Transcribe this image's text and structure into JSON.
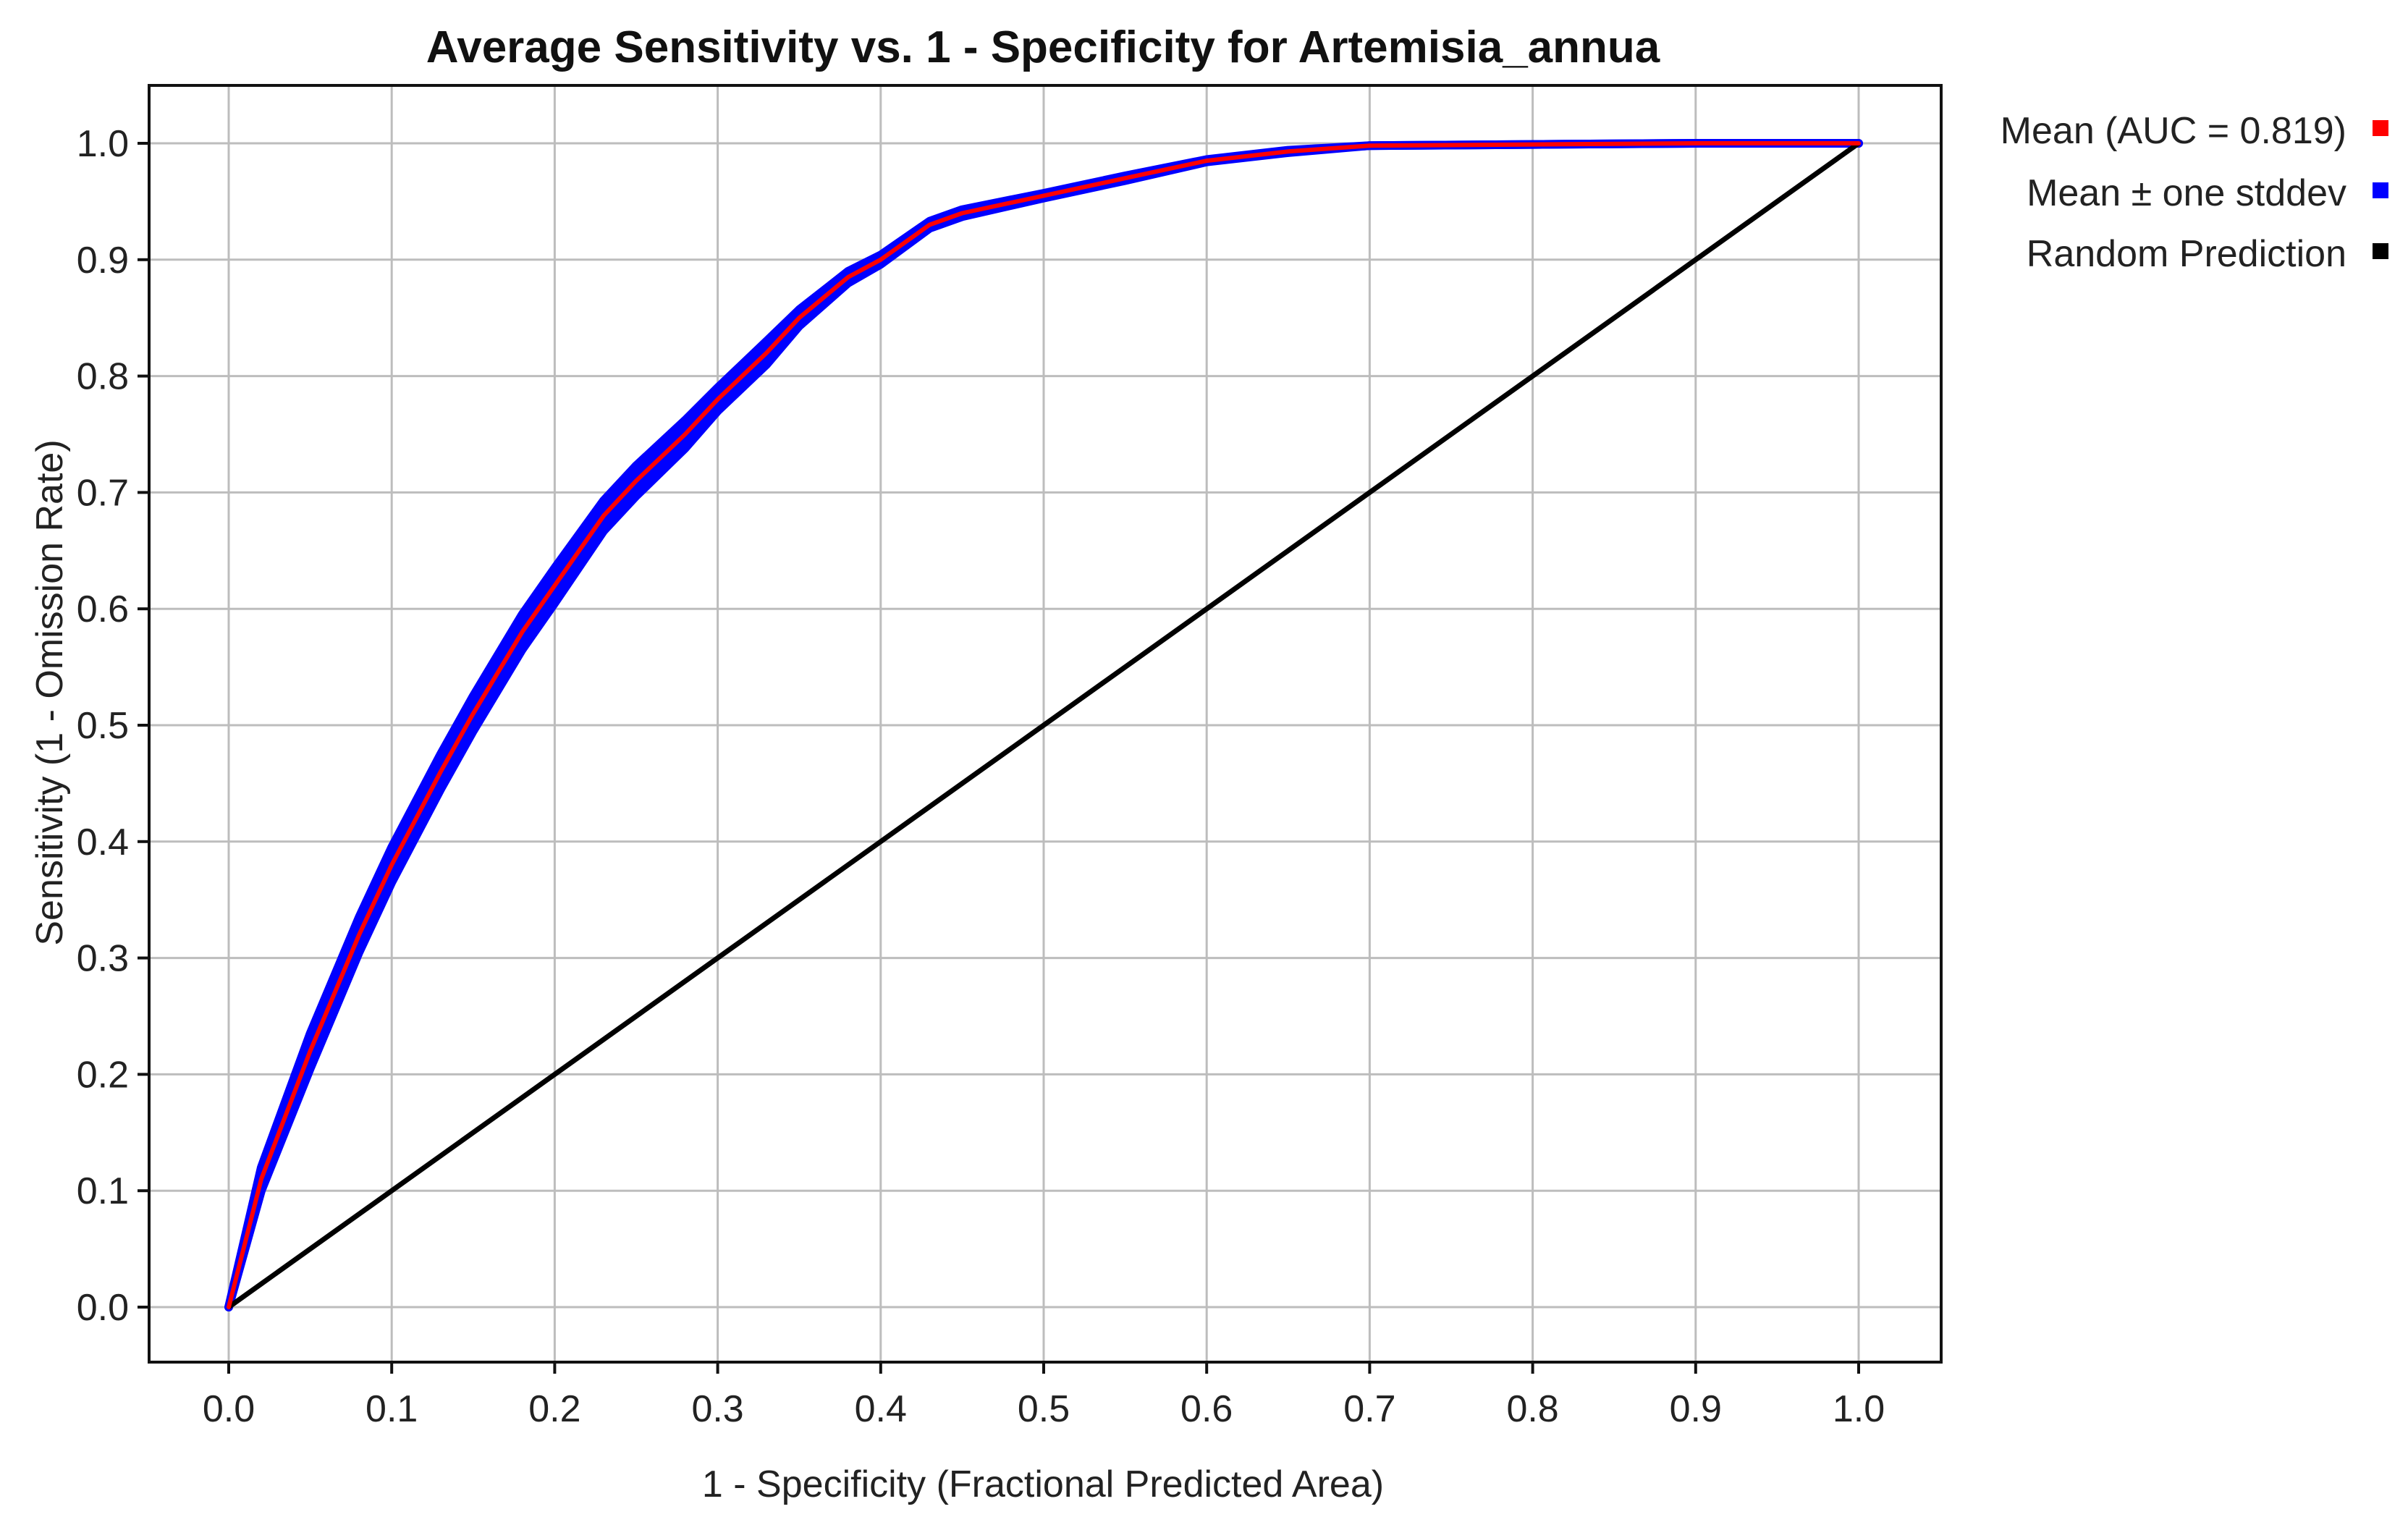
{
  "chart_data": {
    "type": "line",
    "title": "Average Sensitivity vs. 1 - Specificity for Artemisia_annua",
    "xlabel": "1 - Specificity (Fractional Predicted Area)",
    "ylabel": "Sensitivity (1 - Omission Rate)",
    "xlim": [
      0.0,
      1.0
    ],
    "ylim": [
      0.0,
      1.0
    ],
    "x_ticks": [
      "0.0",
      "0.1",
      "0.2",
      "0.3",
      "0.4",
      "0.5",
      "0.6",
      "0.7",
      "0.8",
      "0.9",
      "1.0"
    ],
    "y_ticks": [
      "0.0",
      "0.1",
      "0.2",
      "0.3",
      "0.4",
      "0.5",
      "0.6",
      "0.7",
      "0.8",
      "0.9",
      "1.0"
    ],
    "grid": true,
    "legend_position": "right",
    "legend": [
      {
        "label": "Mean (AUC = 0.819)",
        "color": "#ff0000"
      },
      {
        "label": "Mean  ± one stddev",
        "color": "#0000ff"
      },
      {
        "label": "Random Prediction",
        "color": "#000000"
      }
    ],
    "series": [
      {
        "name": "Mean (AUC = 0.819)",
        "color": "#ff0000",
        "x": [
          0.0,
          0.02,
          0.05,
          0.08,
          0.1,
          0.13,
          0.15,
          0.18,
          0.2,
          0.23,
          0.25,
          0.28,
          0.3,
          0.33,
          0.35,
          0.38,
          0.4,
          0.43,
          0.45,
          0.5,
          0.55,
          0.6,
          0.65,
          0.7,
          0.8,
          0.9,
          1.0
        ],
        "y": [
          0.0,
          0.11,
          0.22,
          0.32,
          0.38,
          0.46,
          0.51,
          0.58,
          0.62,
          0.68,
          0.71,
          0.75,
          0.78,
          0.82,
          0.85,
          0.885,
          0.9,
          0.93,
          0.94,
          0.955,
          0.97,
          0.985,
          0.993,
          0.998,
          0.999,
          1.0,
          1.0
        ]
      },
      {
        "name": "Mean  ± one stddev",
        "color": "#0000ff",
        "x": [
          0.0,
          0.02,
          0.05,
          0.08,
          0.1,
          0.13,
          0.15,
          0.18,
          0.2,
          0.23,
          0.25,
          0.28,
          0.3,
          0.33,
          0.35,
          0.38,
          0.4,
          0.43,
          0.45,
          0.5,
          0.55,
          0.6,
          0.65,
          0.7,
          0.8,
          0.9,
          1.0
        ],
        "y_upper": [
          0.0,
          0.12,
          0.235,
          0.335,
          0.395,
          0.475,
          0.525,
          0.595,
          0.635,
          0.693,
          0.723,
          0.762,
          0.79,
          0.83,
          0.857,
          0.89,
          0.904,
          0.933,
          0.943,
          0.957,
          0.972,
          0.986,
          0.994,
          0.998,
          0.999,
          1.0,
          1.0
        ],
        "y_lower": [
          0.0,
          0.1,
          0.205,
          0.305,
          0.365,
          0.445,
          0.495,
          0.565,
          0.605,
          0.667,
          0.697,
          0.738,
          0.77,
          0.81,
          0.843,
          0.88,
          0.896,
          0.927,
          0.937,
          0.953,
          0.968,
          0.984,
          0.992,
          0.998,
          0.999,
          1.0,
          1.0
        ]
      },
      {
        "name": "Random Prediction",
        "color": "#000000",
        "x": [
          0.0,
          1.0
        ],
        "y": [
          0.0,
          1.0
        ]
      }
    ]
  }
}
